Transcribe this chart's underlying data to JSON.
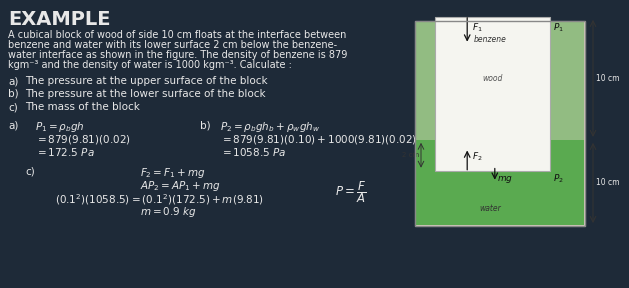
{
  "title": "EXAMPLE",
  "background_color": "#1e2a38",
  "text_color": "#e8e8e8",
  "title_fontsize": 13,
  "body_fontsize": 7.5,
  "solution_fontsize": 7.5,
  "problem_text_lines": [
    "A cubical block of wood of side 10 cm floats at the interface between",
    "benzene and water with its lower surface 2 cm below the benzene-",
    "water interface as shown in the figure. The density of benzene is 879",
    "kgm⁻³ and the density of water is 1000 kgm⁻³. Calculate :"
  ],
  "parts": [
    [
      "a)",
      "The pressure at the upper surface of the block"
    ],
    [
      "b)",
      "The pressure at the lower surface of the block"
    ],
    [
      "c)",
      "The mass of the block"
    ]
  ],
  "fig_outer_bg": "#d8d0c0",
  "fig_benzene_color": "#92bc82",
  "fig_water_color": "#5aaa50",
  "fig_wood_color": "#f5f5f0",
  "fig_border_color": "#999999"
}
